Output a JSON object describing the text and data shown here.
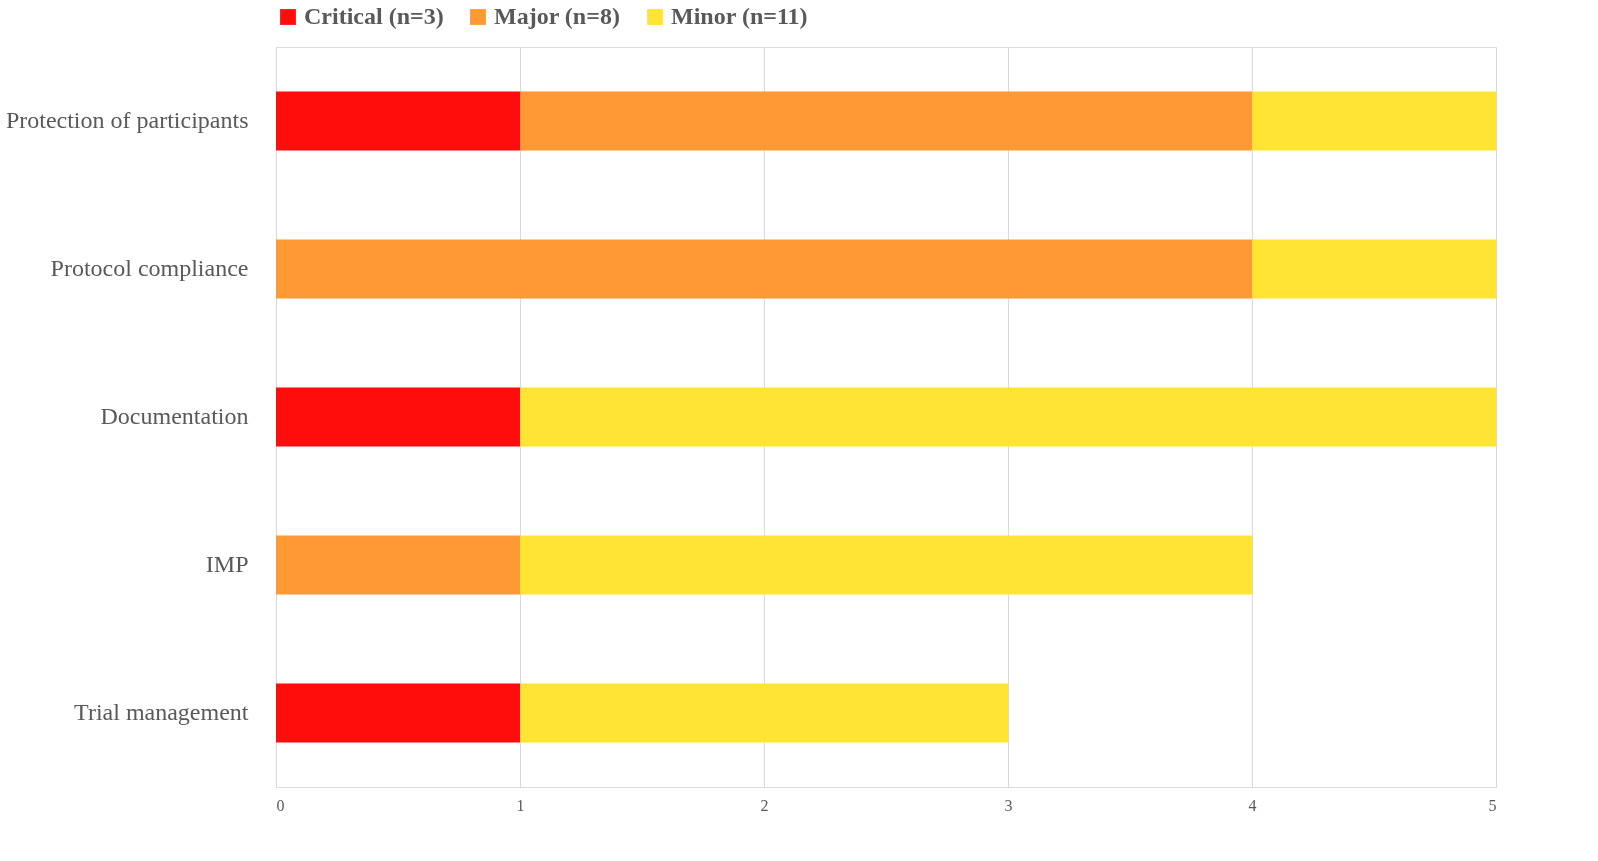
{
  "chart_data": {
    "type": "bar",
    "orientation": "horizontal",
    "stacked": true,
    "categories": [
      "Protection of participants",
      "Protocol compliance",
      "Documentation",
      "IMP",
      "Trial management"
    ],
    "series": [
      {
        "name": "Critical (n=3)",
        "color": "#ff0d0d",
        "values": [
          1,
          0,
          1,
          0,
          1
        ]
      },
      {
        "name": "Major (n=8)",
        "color": "#ff9933",
        "values": [
          3,
          4,
          0,
          1,
          0
        ]
      },
      {
        "name": "Minor (n=11)",
        "color": "#ffe433",
        "values": [
          1,
          1,
          4,
          3,
          2
        ]
      }
    ],
    "xlim": [
      0,
      5
    ],
    "xticks": [
      0,
      1,
      2,
      3,
      4,
      5
    ],
    "grid": "x",
    "legend": "top"
  }
}
